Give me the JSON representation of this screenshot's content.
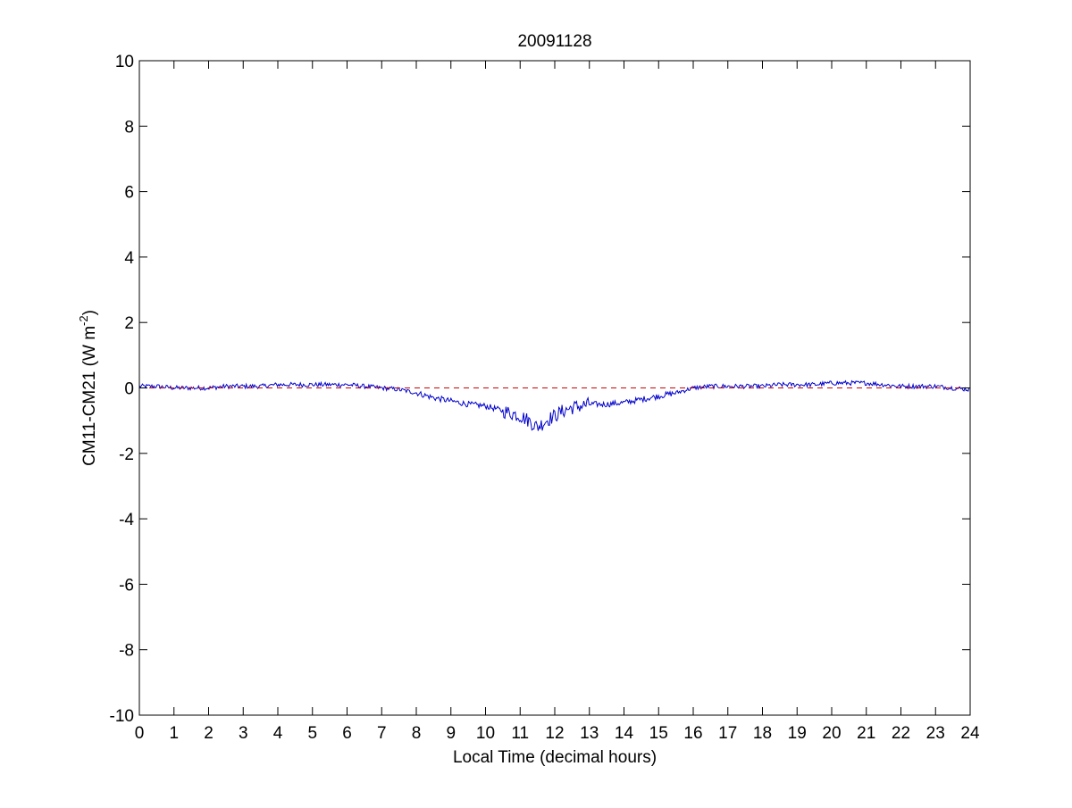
{
  "chart_data": {
    "type": "line",
    "title": "20091128",
    "xlabel": "Local Time (decimal hours)",
    "ylabel": "CM11-CM21 (W m",
    "ylabel_superscript": "-2",
    "ylabel_suffix": ")",
    "xlim": [
      0,
      24
    ],
    "ylim": [
      -10,
      10
    ],
    "xticks": [
      "0",
      "1",
      "2",
      "3",
      "4",
      "5",
      "6",
      "7",
      "8",
      "9",
      "10",
      "11",
      "12",
      "13",
      "14",
      "15",
      "16",
      "17",
      "18",
      "19",
      "20",
      "21",
      "22",
      "23",
      "24"
    ],
    "yticks": [
      "10",
      "8",
      "6",
      "4",
      "2",
      "0",
      "-2",
      "-4",
      "-6",
      "-8",
      "-10"
    ],
    "grid": false,
    "legend": "none",
    "series": [
      {
        "color": "#0000cc",
        "style": "solid",
        "x": [
          0,
          0.5,
          1,
          1.5,
          2,
          2.5,
          3,
          3.5,
          4,
          4.5,
          5,
          5.5,
          6,
          6.5,
          7,
          7.5,
          8,
          8.5,
          9,
          9.5,
          10,
          10.5,
          11,
          11.25,
          11.5,
          11.75,
          12,
          12.25,
          12.5,
          13,
          13.5,
          14,
          14.5,
          15,
          15.5,
          16,
          16.5,
          17,
          17.5,
          18,
          18.5,
          19,
          19.5,
          20,
          20.5,
          21,
          21.5,
          22,
          22.5,
          23,
          23.5,
          24
        ],
        "y": [
          0.05,
          0.05,
          0.0,
          0.0,
          0.0,
          0.05,
          0.05,
          0.05,
          0.1,
          0.1,
          0.1,
          0.1,
          0.1,
          0.05,
          0.0,
          -0.05,
          -0.15,
          -0.3,
          -0.4,
          -0.5,
          -0.55,
          -0.7,
          -0.85,
          -1.0,
          -1.2,
          -1.0,
          -0.85,
          -0.7,
          -0.6,
          -0.5,
          -0.5,
          -0.45,
          -0.35,
          -0.25,
          -0.15,
          0.0,
          0.05,
          0.05,
          0.05,
          0.05,
          0.1,
          0.1,
          0.1,
          0.15,
          0.15,
          0.15,
          0.1,
          0.05,
          0.05,
          0.05,
          0.0,
          -0.05
        ]
      },
      {
        "color": "#cc0000",
        "style": "dashed",
        "x": [
          0,
          24
        ],
        "y": [
          0,
          0
        ]
      }
    ]
  }
}
